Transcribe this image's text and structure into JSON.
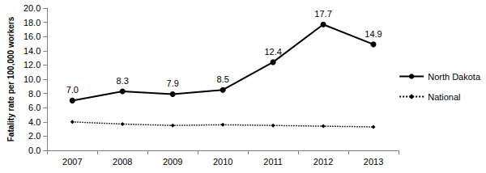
{
  "chart_data": {
    "type": "line",
    "y_label": "Fatality rate per 100,000 workers",
    "categories": [
      "2007",
      "2008",
      "2009",
      "2010",
      "2011",
      "2012",
      "2013"
    ],
    "series": [
      {
        "name": "North Dakota",
        "color": "#000000",
        "marker": "circle",
        "line_style": "solid",
        "values": [
          7.0,
          8.3,
          7.9,
          8.5,
          12.4,
          17.7,
          14.9
        ],
        "data_labels": true,
        "value_labels": [
          "7.0",
          "8.3",
          "7.9",
          "8.5",
          "12.4",
          "17.7",
          "14.9"
        ]
      },
      {
        "name": "National",
        "color": "#000000",
        "marker": "diamond",
        "line_style": "dotted",
        "values": [
          4.0,
          3.7,
          3.5,
          3.6,
          3.5,
          3.4,
          3.3
        ]
      }
    ],
    "ylim": [
      0,
      20
    ],
    "yticks": [
      {
        "value": 0,
        "label": "0.0"
      },
      {
        "value": 2,
        "label": "2.0"
      },
      {
        "value": 4,
        "label": "4.0"
      },
      {
        "value": 6,
        "label": "6.0"
      },
      {
        "value": 8,
        "label": "8.0"
      },
      {
        "value": 10,
        "label": "10.0"
      },
      {
        "value": 12,
        "label": "12.0"
      },
      {
        "value": 14,
        "label": "14.0"
      },
      {
        "value": 16,
        "label": "16.0"
      },
      {
        "value": 18,
        "label": "18.0"
      },
      {
        "value": 20,
        "label": "20.0"
      }
    ],
    "grid": false,
    "legend": "right"
  }
}
